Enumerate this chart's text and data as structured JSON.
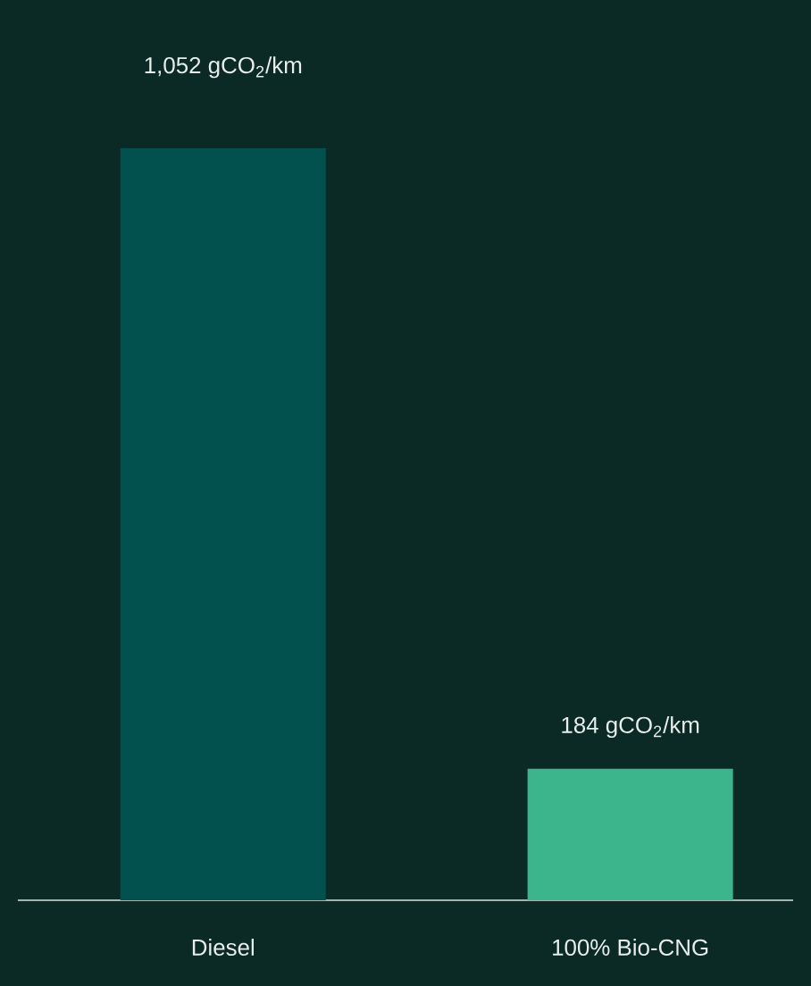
{
  "chart_data": {
    "type": "bar",
    "categories": [
      "Diesel",
      "100% Bio-CNG"
    ],
    "values": [
      1052,
      184
    ],
    "colors": [
      "#02514f",
      "#3db58c"
    ],
    "value_labels": [
      "1,052 gCO$_{2}$/km",
      "184 gCO$_{2}$/km"
    ]
  }
}
